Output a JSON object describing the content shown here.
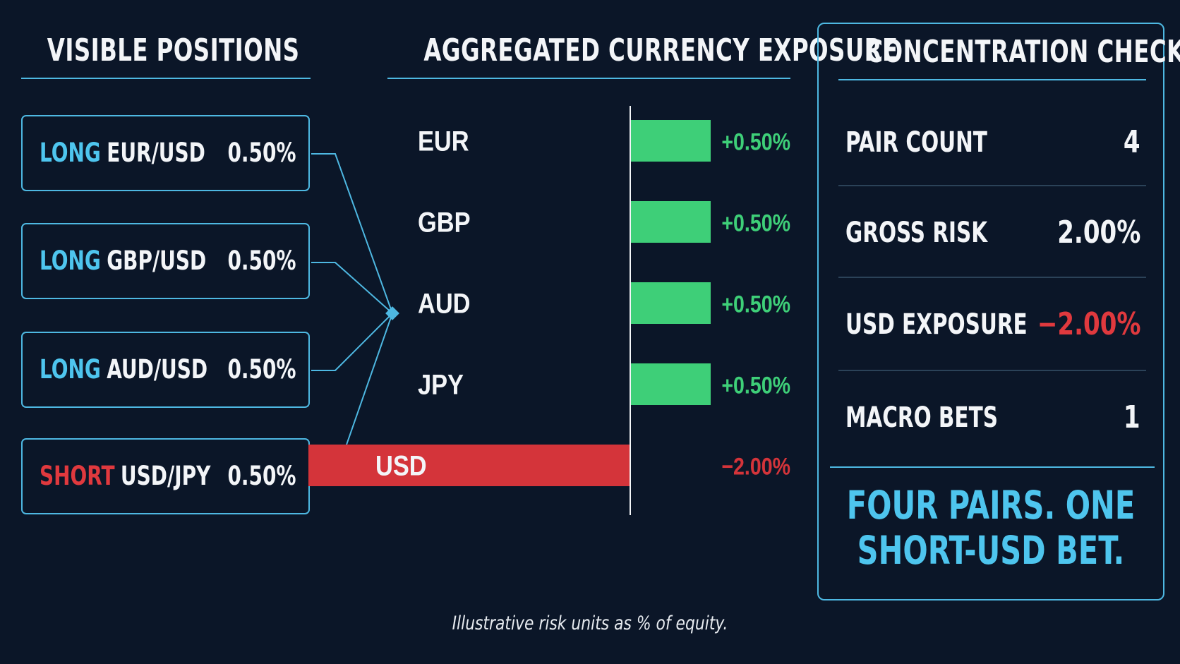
{
  "colors": {
    "background": "#0b1628",
    "accent": "#4eb8e2",
    "long": "#4ec5ee",
    "short": "#e0393e",
    "positive": "#3ecf78",
    "negative": "#d4343a",
    "text": "#f3f5f8"
  },
  "positions": {
    "title": "VISIBLE POSITIONS",
    "items": [
      {
        "side": "LONG",
        "pair": "EUR/USD",
        "risk": "0.50%"
      },
      {
        "side": "LONG",
        "pair": "GBP/USD",
        "risk": "0.50%"
      },
      {
        "side": "LONG",
        "pair": "AUD/USD",
        "risk": "0.50%"
      },
      {
        "side": "SHORT",
        "pair": "USD/JPY",
        "risk": "0.50%"
      }
    ]
  },
  "chart_data": {
    "type": "bar",
    "orientation": "horizontal",
    "title": "AGGREGATED CURRENCY EXPOSURE",
    "categories": [
      "EUR",
      "GBP",
      "AUD",
      "JPY",
      "USD"
    ],
    "values": [
      0.5,
      0.5,
      0.5,
      0.5,
      -2.0
    ],
    "value_labels": [
      "+0.50%",
      "+0.50%",
      "+0.50%",
      "+0.50%",
      "−2.00%"
    ],
    "xlim": [
      -2.0,
      0.5
    ],
    "xlabel": "",
    "ylabel": "",
    "grid": false,
    "legend": "none"
  },
  "check": {
    "title": "CONCENTRATION CHECK",
    "rows": [
      {
        "label": "PAIR COUNT",
        "value": "4"
      },
      {
        "label": "GROSS RISK",
        "value": "2.00%"
      },
      {
        "label": "USD EXPOSURE",
        "value": "−2.00%",
        "negative": true
      },
      {
        "label": "MACRO BETS",
        "value": "1"
      }
    ],
    "verdict_line1": "FOUR PAIRS. ONE",
    "verdict_line2": "SHORT-USD BET."
  },
  "footnote": "Illustrative risk units as % of equity."
}
